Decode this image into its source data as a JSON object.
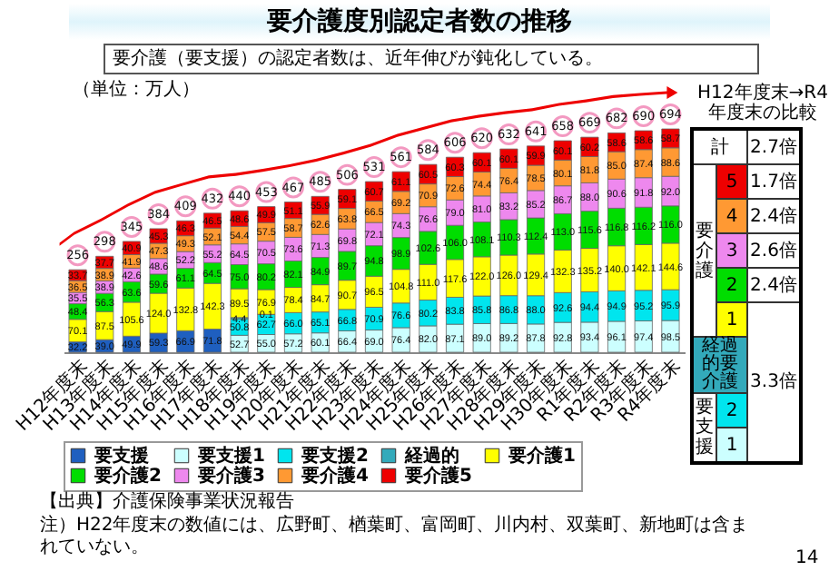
{
  "chart_data": {
    "type": "bar",
    "stacked": true,
    "title": "要介護度別認定者数の推移",
    "subtitle": "要介護（要支援）の認定者数は、近年伸びが鈍化している。",
    "categories": [
      "H12年度末",
      "H13年度末",
      "H14年度末",
      "H15年度末",
      "H16年度末",
      "H17年度末",
      "H18年度末",
      "H19年度末",
      "H20年度末",
      "H21年度末",
      "H22年度末",
      "H23年度末",
      "H24年度末",
      "H25年度末",
      "H26年度末",
      "H27年度末",
      "H28年度末",
      "H29年度末",
      "H30年度末",
      "R1年度末",
      "R2年度末",
      "R3年度末",
      "R4年度末"
    ],
    "series": [
      {
        "name": "要支援",
        "color": "#1f5fbf",
        "values": [
          32.2,
          39.0,
          49.9,
          59.3,
          66.9,
          71.8,
          null,
          null,
          null,
          null,
          null,
          null,
          null,
          null,
          null,
          null,
          null,
          null,
          null,
          null,
          null,
          null,
          null
        ],
        "value_labels": [
          "32.2",
          "39.0",
          "49.9",
          "59.3",
          "66.9",
          "71.8",
          null,
          null,
          null,
          null,
          null,
          null,
          null,
          null,
          null,
          null,
          null,
          null,
          null,
          null,
          null,
          null,
          null
        ]
      },
      {
        "name": "要支援1",
        "color": "#ccffff",
        "values": [
          null,
          null,
          null,
          null,
          null,
          null,
          52.7,
          55.0,
          57.2,
          60.1,
          66.4,
          69.0,
          76.4,
          82.0,
          87.1,
          89.0,
          89.2,
          87.8,
          92.8,
          93.4,
          96.1,
          97.4,
          98.5
        ],
        "value_labels": [
          null,
          null,
          null,
          null,
          null,
          null,
          "52.7",
          "55.0",
          "57.2",
          "60.1",
          "66.4",
          "69.0",
          "76.4",
          "82.0",
          "87.1",
          "89.0",
          "89.2",
          "87.8",
          "92.8",
          "93.4",
          "96.1",
          "97.4",
          "98.5"
        ]
      },
      {
        "name": "要支援2",
        "color": "#00e5ee",
        "values": [
          null,
          null,
          null,
          null,
          null,
          null,
          50.8,
          62.7,
          66.0,
          65.1,
          66.8,
          70.9,
          76.6,
          80.2,
          83.8,
          85.8,
          86.8,
          88.0,
          92.6,
          94.4,
          94.9,
          95.2,
          95.9
        ],
        "value_labels": [
          null,
          null,
          null,
          null,
          null,
          null,
          "50.8",
          "62.7",
          "66.0",
          "65.1",
          "66.8",
          "70.9",
          "76.6",
          "80.2",
          "83.8",
          "85.8",
          "86.8",
          "88.0",
          "92.6",
          "94.4",
          "94.9",
          "95.2",
          "95.9"
        ]
      },
      {
        "name": "経過的",
        "color": "#33aabb",
        "values": [
          null,
          null,
          null,
          null,
          null,
          null,
          4.4,
          0.1,
          null,
          null,
          null,
          null,
          null,
          null,
          null,
          null,
          null,
          null,
          null,
          null,
          null,
          null,
          null
        ],
        "value_labels": [
          null,
          null,
          null,
          null,
          null,
          null,
          "4.4",
          "0.1",
          null,
          null,
          null,
          null,
          null,
          null,
          null,
          null,
          null,
          null,
          null,
          null,
          null,
          null,
          null
        ]
      },
      {
        "name": "要介護1",
        "color": "#ffff00",
        "values": [
          70.1,
          87.5,
          105.6,
          124.0,
          132.8,
          142.3,
          89.5,
          76.9,
          78.4,
          84.7,
          90.7,
          96.5,
          104.8,
          111.0,
          117.6,
          122.0,
          126.0,
          129.4,
          132.3,
          135.2,
          140.0,
          142.1,
          144.6
        ],
        "value_labels": [
          "70.1",
          "87.5",
          "105.6",
          "124.0",
          "132.8",
          "142.3",
          "89.5",
          "76.9",
          "78.4",
          "84.7",
          "90.7",
          "96.5",
          "104.8",
          "111.0",
          "117.6",
          "122.0",
          "126.0",
          "129.4",
          "132.3",
          "135.2",
          "140.0",
          "142.1",
          "144.6"
        ]
      },
      {
        "name": "要介護2",
        "color": "#00dd00",
        "values": [
          48.4,
          56.3,
          63.6,
          59.6,
          61.1,
          64.5,
          75.0,
          80.2,
          82.1,
          84.9,
          89.7,
          94.8,
          98.9,
          102.6,
          106.0,
          108.1,
          110.3,
          112.4,
          113.0,
          115.6,
          116.8,
          116.2,
          116.0
        ],
        "value_labels": [
          "48.4",
          "56.3",
          "63.6",
          "59.6",
          "61.1",
          "64.5",
          "75.0",
          "80.2",
          "82.1",
          "84.9",
          "89.7",
          "94.8",
          "98.9",
          "102.6",
          "106.0",
          "108.1",
          "110.3",
          "112.4",
          "113.0",
          "115.6",
          "116.8",
          "116.2",
          "116.0"
        ]
      },
      {
        "name": "要介護3",
        "color": "#ee88ee",
        "values": [
          35.5,
          38.9,
          42.6,
          48.6,
          52.2,
          55.2,
          64.5,
          70.5,
          73.6,
          71.3,
          69.8,
          72.1,
          74.3,
          76.6,
          79.0,
          81.0,
          83.2,
          85.2,
          86.7,
          88.0,
          90.6,
          91.8,
          92.0
        ],
        "value_labels": [
          "35.5",
          "38.9",
          "42.6",
          "48.6",
          "52.2",
          "55.2",
          "64.5",
          "70.5",
          "73.6",
          "71.3",
          "69.8",
          "72.1",
          "74.3",
          "76.6",
          "79.0",
          "81.0",
          "83.2",
          "85.2",
          "86.7",
          "88.0",
          "90.6",
          "91.8",
          "92.0"
        ]
      },
      {
        "name": "要介護4",
        "color": "#ff9933",
        "values": [
          36.5,
          38.9,
          41.9,
          47.3,
          49.3,
          52.1,
          54.4,
          57.5,
          58.7,
          62.6,
          63.8,
          66.5,
          69.2,
          70.9,
          72.6,
          74.4,
          76.4,
          78.5,
          80.1,
          81.8,
          85.0,
          87.4,
          88.6
        ],
        "value_labels": [
          "36.5",
          "38.9",
          "41.9",
          "47.3",
          "49.3",
          "52.1",
          "54.4",
          "57.5",
          "58.7",
          "62.6",
          "63.8",
          "66.5",
          "69.2",
          "70.9",
          "72.6",
          "74.4",
          "76.4",
          "78.5",
          "80.1",
          "81.8",
          "85.0",
          "87.4",
          "88.6"
        ]
      },
      {
        "name": "要介護5",
        "color": "#ee0000",
        "values": [
          33.7,
          37.7,
          40.9,
          45.3,
          46.3,
          46.5,
          48.6,
          49.9,
          51.1,
          55.9,
          59.1,
          60.7,
          61.1,
          60.5,
          60.3,
          60.1,
          60.1,
          59.9,
          60.1,
          60.2,
          58.6,
          58.6,
          58.7
        ],
        "value_labels": [
          "33.7",
          "37.7",
          "40.9",
          "45.3",
          "46.3",
          "46.5",
          "48.6",
          "49.9",
          "51.1",
          "55.9",
          "59.1",
          "60.7",
          "61.1",
          "60.5",
          "60.3",
          "60.1",
          "60.1",
          "59.9",
          "60.1",
          "60.2",
          "58.6",
          "58.6",
          "58.7"
        ]
      }
    ],
    "totals": [
      "256",
      "298",
      "345",
      "384",
      "409",
      "432",
      "440",
      "453",
      "467",
      "485",
      "506",
      "531",
      "561",
      "584",
      "606",
      "620",
      "632",
      "641",
      "658",
      "669",
      "682",
      "690",
      "694"
    ],
    "legend": "bottom",
    "annotations": [
      "（単位：万人）",
      "【出典】介護保険事業状況報告",
      "注）H22年度末の数値には、広野町、楢葉町、富岡町、川内村、双葉町、新地町は含まれていない。",
      "14",
      "H12年度末→R4年度末の比較",
      "計",
      "2.7倍",
      "要介護",
      "5",
      "1.7倍",
      "4",
      "2.4倍",
      "3",
      "2.6倍",
      "2",
      "2.4倍",
      "1",
      "3.3倍",
      "経過的要介護",
      "要支援",
      "2",
      "1"
    ]
  }
}
